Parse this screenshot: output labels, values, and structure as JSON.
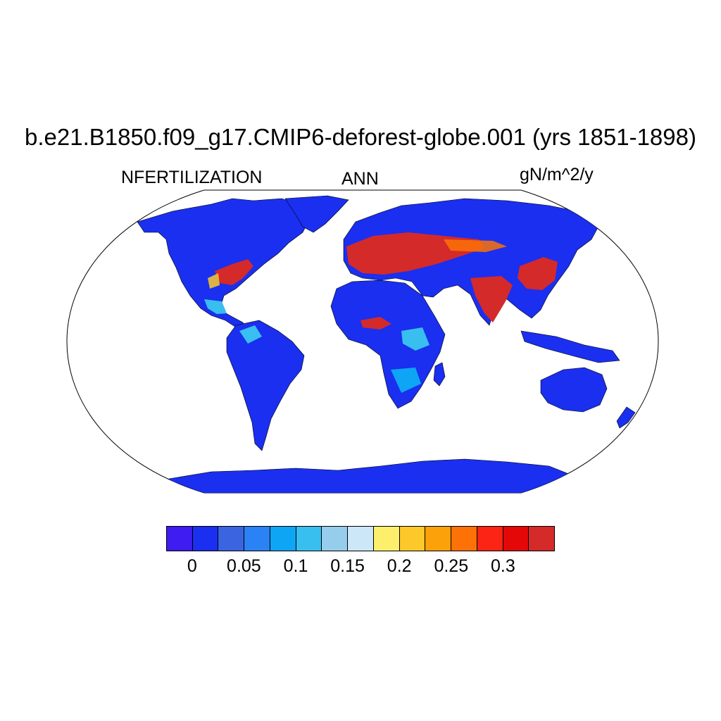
{
  "header": {
    "title": "b.e21.B1850.f09_g17.CMIP6-deforest-globe.001 (yrs 1851-1898)",
    "variable": "NFERTILIZATION",
    "season": "ANN",
    "units": "gN/m^2/y"
  },
  "map": {
    "projection": "Robinson",
    "ocean_color": "#ffffff",
    "land_base_color": "#1a2ff0",
    "coastline_color": "#000000"
  },
  "colorbar": {
    "colors": [
      "#3f1cf0",
      "#1a2ff0",
      "#3a64e0",
      "#2a82f5",
      "#0ea5f5",
      "#38bff0",
      "#96cdec",
      "#cce7f8",
      "#fdef6b",
      "#fdc92a",
      "#fca10a",
      "#fc7206",
      "#fc2414",
      "#e40808",
      "#d42a2a"
    ],
    "tick_labels": [
      "0",
      "0.05",
      "0.1",
      "0.15",
      "0.2",
      "0.25",
      "0.3"
    ]
  }
}
